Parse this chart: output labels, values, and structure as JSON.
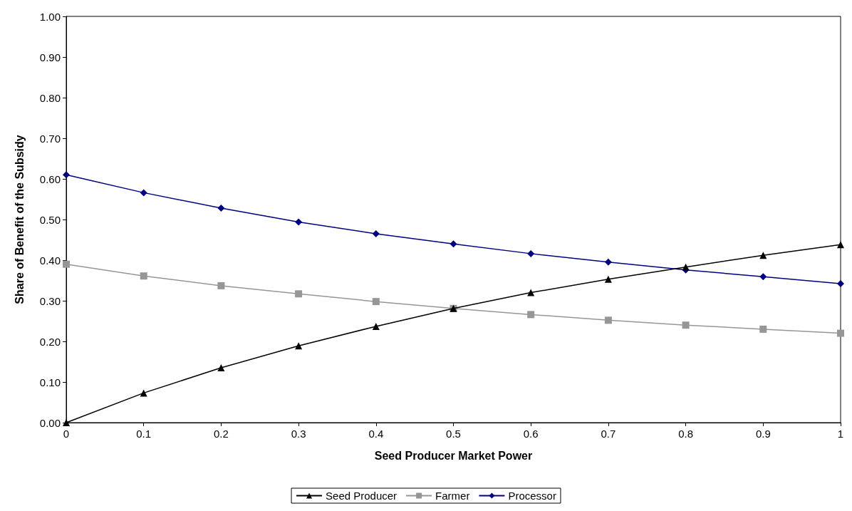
{
  "chart_data": {
    "type": "line",
    "xlabel": "Seed Producer Market Power",
    "ylabel": "Share of Benefit of the Subsidy",
    "x": [
      0,
      0.1,
      0.2,
      0.3,
      0.4,
      0.5,
      0.6,
      0.7,
      0.8,
      0.9,
      1
    ],
    "series": [
      {
        "name": "Seed Producer",
        "color": "#000000",
        "marker": "triangle",
        "values": [
          0,
          0.073,
          0.135,
          0.189,
          0.237,
          0.281,
          0.32,
          0.353,
          0.383,
          0.412,
          0.438
        ]
      },
      {
        "name": "Farmer",
        "color": "#969696",
        "marker": "square",
        "values": [
          0.39,
          0.361,
          0.337,
          0.317,
          0.298,
          0.281,
          0.266,
          0.252,
          0.24,
          0.23,
          0.22
        ]
      },
      {
        "name": "Processor",
        "color": "#000080",
        "marker": "diamond",
        "values": [
          0.61,
          0.566,
          0.528,
          0.494,
          0.465,
          0.44,
          0.416,
          0.395,
          0.376,
          0.359,
          0.342
        ]
      }
    ],
    "xlim": [
      0,
      1
    ],
    "xticks": [
      0,
      0.1,
      0.2,
      0.3,
      0.4,
      0.5,
      0.6,
      0.7,
      0.8,
      0.9,
      1
    ],
    "ylim": [
      0,
      1
    ],
    "yticks": [
      {
        "value": 0,
        "label": "0.00"
      },
      {
        "value": 0.1,
        "label": "0.10"
      },
      {
        "value": 0.2,
        "label": "0.20"
      },
      {
        "value": 0.3,
        "label": "0.30"
      },
      {
        "value": 0.4,
        "label": "0.40"
      },
      {
        "value": 0.5,
        "label": "0.50"
      },
      {
        "value": 0.6,
        "label": "0.60"
      },
      {
        "value": 0.7,
        "label": "0.70"
      },
      {
        "value": 0.8,
        "label": "0.80"
      },
      {
        "value": 0.9,
        "label": "0.90"
      },
      {
        "value": 1,
        "label": "1.00"
      }
    ],
    "grid": false,
    "legend": "bottom",
    "line_style": "solid"
  }
}
